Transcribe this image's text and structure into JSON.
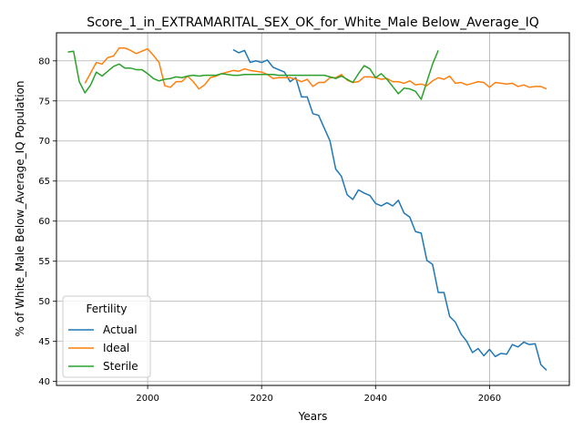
{
  "chart_data": {
    "type": "line",
    "title": "Score_1_in_EXTRAMARITAL_SEX_OK_for_White_Male Below_Average_IQ",
    "xlabel": "Years",
    "ylabel": "% of White_Male Below_Average_IQ Population",
    "xlim": [
      1984,
      2074
    ],
    "ylim": [
      39.5,
      83.5
    ],
    "xticks": [
      2000,
      2020,
      2040,
      2060
    ],
    "yticks": [
      40,
      45,
      50,
      55,
      60,
      65,
      70,
      75,
      80
    ],
    "grid": true,
    "legend": {
      "title": "Fertility",
      "position": "lower-left"
    },
    "series": [
      {
        "name": "Actual",
        "color": "#1f77b4",
        "points": [
          [
            2015,
            81.4
          ],
          [
            2016,
            81.0
          ],
          [
            2017,
            81.3
          ],
          [
            2018,
            79.8
          ],
          [
            2019,
            80.0
          ],
          [
            2020,
            79.8
          ],
          [
            2021,
            80.1
          ],
          [
            2022,
            79.2
          ],
          [
            2023,
            78.9
          ],
          [
            2024,
            78.6
          ],
          [
            2025,
            77.4
          ],
          [
            2026,
            77.9
          ],
          [
            2027,
            75.5
          ],
          [
            2028,
            75.5
          ],
          [
            2029,
            73.4
          ],
          [
            2030,
            73.2
          ],
          [
            2031,
            71.6
          ],
          [
            2032,
            70.0
          ],
          [
            2033,
            66.5
          ],
          [
            2034,
            65.6
          ],
          [
            2035,
            63.3
          ],
          [
            2036,
            62.7
          ],
          [
            2037,
            63.9
          ],
          [
            2038,
            63.5
          ],
          [
            2039,
            63.2
          ],
          [
            2040,
            62.2
          ],
          [
            2041,
            61.9
          ],
          [
            2042,
            62.3
          ],
          [
            2043,
            61.9
          ],
          [
            2044,
            62.6
          ],
          [
            2045,
            61.0
          ],
          [
            2046,
            60.5
          ],
          [
            2047,
            58.7
          ],
          [
            2048,
            58.5
          ],
          [
            2049,
            55.1
          ],
          [
            2050,
            54.6
          ],
          [
            2051,
            51.1
          ],
          [
            2052,
            51.1
          ],
          [
            2053,
            48.1
          ],
          [
            2054,
            47.4
          ],
          [
            2055,
            45.9
          ],
          [
            2056,
            45.0
          ],
          [
            2057,
            43.6
          ],
          [
            2058,
            44.1
          ],
          [
            2059,
            43.2
          ],
          [
            2060,
            44.0
          ],
          [
            2061,
            43.1
          ],
          [
            2062,
            43.5
          ],
          [
            2063,
            43.4
          ],
          [
            2064,
            44.6
          ],
          [
            2065,
            44.3
          ],
          [
            2066,
            44.9
          ],
          [
            2067,
            44.6
          ],
          [
            2068,
            44.7
          ],
          [
            2069,
            42.1
          ],
          [
            2070,
            41.4
          ]
        ]
      },
      {
        "name": "Ideal",
        "color": "#ff7f0e",
        "points": [
          [
            1989,
            77.2
          ],
          [
            1990,
            78.5
          ],
          [
            1991,
            79.8
          ],
          [
            1992,
            79.6
          ],
          [
            1993,
            80.4
          ],
          [
            1994,
            80.6
          ],
          [
            1995,
            81.6
          ],
          [
            1996,
            81.6
          ],
          [
            1997,
            81.3
          ],
          [
            1998,
            80.9
          ],
          [
            1999,
            81.2
          ],
          [
            2000,
            81.5
          ],
          [
            2001,
            80.7
          ],
          [
            2002,
            79.8
          ],
          [
            2003,
            76.9
          ],
          [
            2004,
            76.7
          ],
          [
            2005,
            77.4
          ],
          [
            2006,
            77.4
          ],
          [
            2007,
            78.1
          ],
          [
            2008,
            77.4
          ],
          [
            2009,
            76.5
          ],
          [
            2010,
            77.0
          ],
          [
            2011,
            77.9
          ],
          [
            2012,
            78.1
          ],
          [
            2013,
            78.4
          ],
          [
            2014,
            78.6
          ],
          [
            2015,
            78.8
          ],
          [
            2016,
            78.7
          ],
          [
            2017,
            79.0
          ],
          [
            2018,
            78.8
          ],
          [
            2019,
            78.7
          ],
          [
            2020,
            78.6
          ],
          [
            2021,
            78.3
          ],
          [
            2022,
            77.8
          ],
          [
            2023,
            77.9
          ],
          [
            2024,
            77.9
          ],
          [
            2025,
            77.9
          ],
          [
            2026,
            77.7
          ],
          [
            2027,
            77.4
          ],
          [
            2028,
            77.7
          ],
          [
            2029,
            76.8
          ],
          [
            2030,
            77.3
          ],
          [
            2031,
            77.3
          ],
          [
            2032,
            77.9
          ],
          [
            2033,
            77.9
          ],
          [
            2034,
            78.3
          ],
          [
            2035,
            77.6
          ],
          [
            2036,
            77.3
          ],
          [
            2037,
            77.4
          ],
          [
            2038,
            78.0
          ],
          [
            2039,
            78.0
          ],
          [
            2040,
            77.9
          ],
          [
            2041,
            77.7
          ],
          [
            2042,
            77.8
          ],
          [
            2043,
            77.4
          ],
          [
            2044,
            77.4
          ],
          [
            2045,
            77.2
          ],
          [
            2046,
            77.5
          ],
          [
            2047,
            77.0
          ],
          [
            2048,
            77.1
          ],
          [
            2049,
            76.9
          ],
          [
            2050,
            77.5
          ],
          [
            2051,
            77.9
          ],
          [
            2052,
            77.7
          ],
          [
            2053,
            78.1
          ],
          [
            2054,
            77.2
          ],
          [
            2055,
            77.3
          ],
          [
            2056,
            77.0
          ],
          [
            2057,
            77.2
          ],
          [
            2058,
            77.4
          ],
          [
            2059,
            77.3
          ],
          [
            2060,
            76.7
          ],
          [
            2061,
            77.3
          ],
          [
            2062,
            77.2
          ],
          [
            2063,
            77.1
          ],
          [
            2064,
            77.2
          ],
          [
            2065,
            76.8
          ],
          [
            2066,
            77.0
          ],
          [
            2067,
            76.7
          ],
          [
            2068,
            76.8
          ],
          [
            2069,
            76.8
          ],
          [
            2070,
            76.5
          ]
        ]
      },
      {
        "name": "Sterile",
        "color": "#2ca02c",
        "points": [
          [
            1986,
            81.1
          ],
          [
            1987,
            81.2
          ],
          [
            1988,
            77.4
          ],
          [
            1989,
            76.0
          ],
          [
            1990,
            77.0
          ],
          [
            1991,
            78.6
          ],
          [
            1992,
            78.1
          ],
          [
            1993,
            78.7
          ],
          [
            1994,
            79.3
          ],
          [
            1995,
            79.6
          ],
          [
            1996,
            79.1
          ],
          [
            1997,
            79.1
          ],
          [
            1998,
            78.9
          ],
          [
            1999,
            78.9
          ],
          [
            2000,
            78.4
          ],
          [
            2001,
            77.8
          ],
          [
            2002,
            77.5
          ],
          [
            2003,
            77.7
          ],
          [
            2004,
            77.8
          ],
          [
            2005,
            78.0
          ],
          [
            2006,
            77.9
          ],
          [
            2007,
            78.1
          ],
          [
            2008,
            78.2
          ],
          [
            2009,
            78.1
          ],
          [
            2010,
            78.2
          ],
          [
            2011,
            78.2
          ],
          [
            2012,
            78.2
          ],
          [
            2013,
            78.4
          ],
          [
            2014,
            78.3
          ],
          [
            2015,
            78.2
          ],
          [
            2016,
            78.2
          ],
          [
            2017,
            78.3
          ],
          [
            2018,
            78.3
          ],
          [
            2019,
            78.3
          ],
          [
            2020,
            78.3
          ],
          [
            2021,
            78.3
          ],
          [
            2022,
            78.3
          ],
          [
            2023,
            78.2
          ],
          [
            2024,
            78.2
          ],
          [
            2025,
            78.2
          ],
          [
            2026,
            78.2
          ],
          [
            2027,
            78.2
          ],
          [
            2028,
            78.2
          ],
          [
            2029,
            78.2
          ],
          [
            2030,
            78.2
          ],
          [
            2031,
            78.2
          ],
          [
            2032,
            78.0
          ],
          [
            2033,
            77.8
          ],
          [
            2034,
            78.1
          ],
          [
            2035,
            77.7
          ],
          [
            2036,
            77.3
          ],
          [
            2037,
            78.4
          ],
          [
            2038,
            79.4
          ],
          [
            2039,
            79.0
          ],
          [
            2040,
            77.9
          ],
          [
            2041,
            78.4
          ],
          [
            2042,
            77.7
          ],
          [
            2043,
            76.8
          ],
          [
            2044,
            75.9
          ],
          [
            2045,
            76.6
          ],
          [
            2046,
            76.5
          ],
          [
            2047,
            76.2
          ],
          [
            2048,
            75.2
          ],
          [
            2049,
            77.4
          ],
          [
            2050,
            79.6
          ],
          [
            2051,
            81.3
          ]
        ]
      }
    ]
  }
}
